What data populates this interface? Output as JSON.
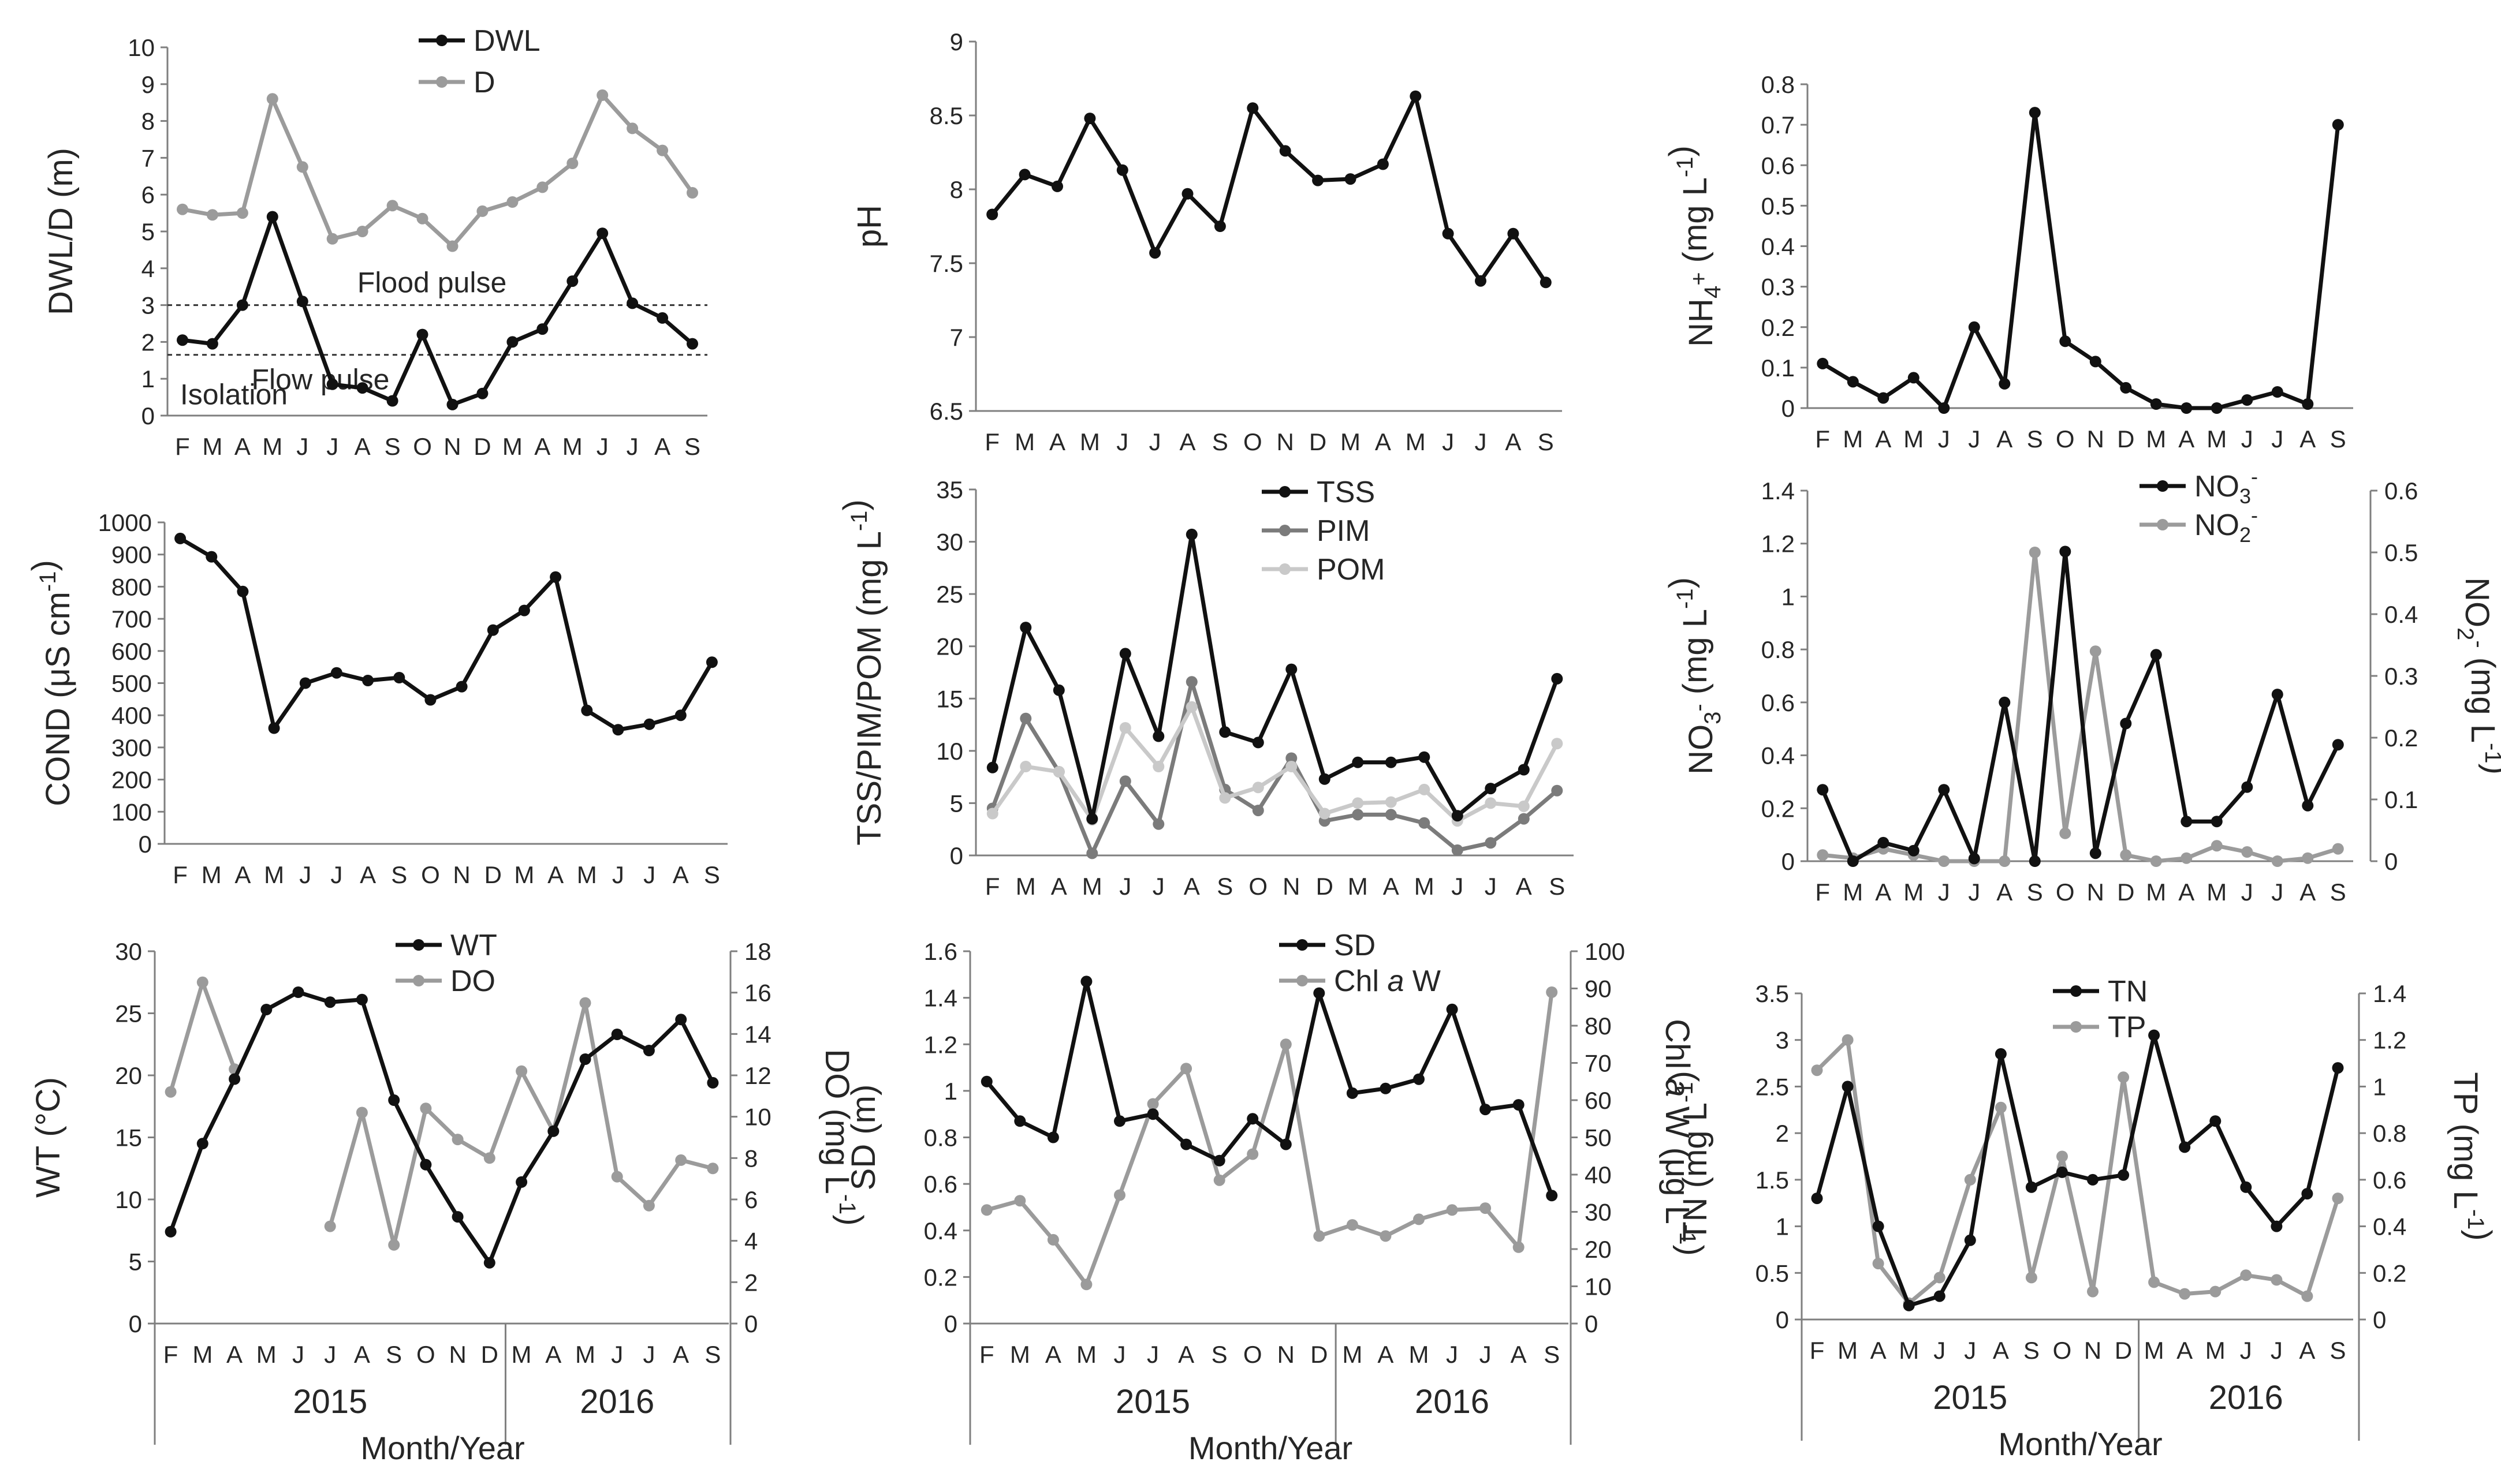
{
  "colors": {
    "black_series": "#111111",
    "gray_series": "#9b9b9b",
    "mid_gray_series": "#7b7b7b",
    "light_gray_series": "#c9c9c9",
    "axis": "#7f7f7f",
    "text": "#262626"
  },
  "chart_data": [
    {
      "id": "dwl",
      "type": "line",
      "categories": [
        "F",
        "M",
        "A",
        "M",
        "J",
        "J",
        "A",
        "S",
        "O",
        "N",
        "D",
        "M",
        "A",
        "M",
        "J",
        "J",
        "A",
        "S"
      ],
      "ylabel": "DWL/D (m)",
      "ylim": [
        0,
        10
      ],
      "yticks": [
        0,
        1,
        2,
        3,
        4,
        5,
        6,
        7,
        8,
        9,
        10
      ],
      "legend": "top-center",
      "series": [
        {
          "name": "DWL",
          "color": "#111111",
          "values": [
            2.05,
            1.95,
            3.0,
            5.4,
            3.1,
            0.85,
            0.75,
            0.4,
            2.2,
            0.3,
            0.6,
            2.0,
            2.35,
            3.65,
            4.95,
            3.05,
            2.65,
            1.95
          ]
        },
        {
          "name": "D",
          "color": "#9b9b9b",
          "values": [
            5.6,
            5.45,
            5.5,
            8.6,
            6.75,
            4.8,
            5.0,
            5.7,
            5.35,
            4.6,
            5.55,
            5.8,
            6.2,
            6.85,
            8.7,
            7.8,
            7.2,
            6.05
          ]
        }
      ],
      "reference_lines": [
        {
          "value": 3.0,
          "label": "Flood pulse"
        },
        {
          "value": 1.65,
          "label": "Flow pulse"
        }
      ],
      "annotations": [
        "Isolation"
      ]
    },
    {
      "id": "ph",
      "type": "line",
      "categories": [
        "F",
        "M",
        "A",
        "M",
        "J",
        "J",
        "A",
        "S",
        "O",
        "N",
        "D",
        "M",
        "A",
        "M",
        "J",
        "J",
        "A",
        "S"
      ],
      "ylabel": "pH",
      "ylim": [
        6.5,
        9
      ],
      "yticks": [
        6.5,
        7,
        7.5,
        8,
        8.5,
        9
      ],
      "series": [
        {
          "name": "pH",
          "color": "#111111",
          "values": [
            7.83,
            8.1,
            8.02,
            8.48,
            8.13,
            7.57,
            7.97,
            7.75,
            8.55,
            8.26,
            8.06,
            8.07,
            8.17,
            8.63,
            7.7,
            7.38,
            7.7,
            7.37
          ]
        }
      ]
    },
    {
      "id": "nh4",
      "type": "line",
      "categories": [
        "F",
        "M",
        "A",
        "M",
        "J",
        "J",
        "A",
        "S",
        "O",
        "N",
        "D",
        "M",
        "A",
        "M",
        "J",
        "J",
        "A",
        "S"
      ],
      "ylabel": "NH4+ (mg L-1)",
      "ylim": [
        0,
        0.8
      ],
      "yticks": [
        0,
        0.1,
        0.2,
        0.3,
        0.4,
        0.5,
        0.6,
        0.7,
        0.8
      ],
      "series": [
        {
          "name": "NH4+",
          "color": "#111111",
          "values": [
            0.11,
            0.065,
            0.025,
            0.075,
            0.0,
            0.2,
            0.06,
            0.73,
            0.165,
            0.115,
            0.05,
            0.01,
            0.0,
            0.0,
            0.02,
            0.04,
            0.01,
            0.7
          ]
        }
      ]
    },
    {
      "id": "cond",
      "type": "line",
      "categories": [
        "F",
        "M",
        "A",
        "M",
        "J",
        "J",
        "A",
        "S",
        "O",
        "N",
        "D",
        "M",
        "A",
        "M",
        "J",
        "J",
        "A",
        "S"
      ],
      "ylabel": "COND (μS cm-1)",
      "ylim": [
        0,
        1000
      ],
      "yticks": [
        0,
        100,
        200,
        300,
        400,
        500,
        600,
        700,
        800,
        900,
        1000
      ],
      "series": [
        {
          "name": "COND",
          "color": "#111111",
          "values": [
            950,
            893,
            785,
            360,
            500,
            532,
            508,
            517,
            448,
            489,
            665,
            726,
            830,
            415,
            355,
            372,
            400,
            565
          ]
        }
      ]
    },
    {
      "id": "tss",
      "type": "line",
      "categories": [
        "F",
        "M",
        "A",
        "M",
        "J",
        "J",
        "A",
        "S",
        "O",
        "N",
        "D",
        "M",
        "A",
        "M",
        "J",
        "J",
        "A",
        "S"
      ],
      "ylabel": "TSS/PIM/POM (mg L-1)",
      "ylim": [
        0,
        35
      ],
      "yticks": [
        0,
        5,
        10,
        15,
        20,
        25,
        30,
        35
      ],
      "legend": "top-center",
      "series": [
        {
          "name": "TSS",
          "color": "#111111",
          "values": [
            8.4,
            21.8,
            15.8,
            3.5,
            19.3,
            11.4,
            30.7,
            11.8,
            10.8,
            17.8,
            7.3,
            8.9,
            8.9,
            9.4,
            3.8,
            6.4,
            8.2,
            16.9
          ]
        },
        {
          "name": "PIM",
          "color": "#7b7b7b",
          "values": [
            4.5,
            13.1,
            8.0,
            0.2,
            7.1,
            3.0,
            16.6,
            6.3,
            4.3,
            9.3,
            3.3,
            3.9,
            3.9,
            3.1,
            0.5,
            1.2,
            3.5,
            6.2
          ]
        },
        {
          "name": "POM",
          "color": "#c9c9c9",
          "values": [
            4.0,
            8.5,
            8.0,
            3.4,
            12.2,
            8.5,
            14.2,
            5.5,
            6.5,
            8.5,
            4.0,
            5.0,
            5.1,
            6.3,
            3.3,
            5.0,
            4.7,
            10.7
          ]
        }
      ]
    },
    {
      "id": "no3",
      "type": "line",
      "categories": [
        "F",
        "M",
        "A",
        "M",
        "J",
        "J",
        "A",
        "S",
        "O",
        "N",
        "D",
        "M",
        "A",
        "M",
        "J",
        "J",
        "A",
        "S"
      ],
      "ylabel": "NO3- (mg L-1)",
      "ylabel_right": "NO2- (mg L-1)",
      "ylim": [
        0,
        1.4
      ],
      "yticks": [
        0,
        0.2,
        0.4,
        0.6,
        0.8,
        1,
        1.2,
        1.4
      ],
      "ylim_right": [
        0,
        0.6
      ],
      "yticks_right": [
        0,
        0.1,
        0.2,
        0.3,
        0.4,
        0.5,
        0.6
      ],
      "legend": "top-right",
      "series": [
        {
          "name": "NO3-",
          "color": "#111111",
          "axis": "left",
          "values": [
            0.27,
            0.0,
            0.07,
            0.04,
            0.27,
            0.01,
            0.6,
            0.0,
            1.17,
            0.03,
            0.52,
            0.78,
            0.15,
            0.15,
            0.28,
            0.63,
            0.21,
            0.44
          ]
        },
        {
          "name": "NO2-",
          "color": "#9b9b9b",
          "axis": "right",
          "values": [
            0.01,
            0.005,
            0.02,
            0.01,
            0.0,
            0.0,
            0.0,
            0.5,
            0.045,
            0.34,
            0.01,
            0.0,
            0.005,
            0.025,
            0.015,
            0.0,
            0.005,
            0.02
          ]
        }
      ]
    },
    {
      "id": "wt",
      "type": "line",
      "categories": [
        "F",
        "M",
        "A",
        "M",
        "J",
        "J",
        "A",
        "S",
        "O",
        "N",
        "D",
        "M",
        "A",
        "M",
        "J",
        "J",
        "A",
        "S"
      ],
      "xgroups": [
        {
          "label": "2015",
          "from": 0,
          "to": 10
        },
        {
          "label": "2016",
          "from": 11,
          "to": 17
        }
      ],
      "xlabel": "Month/Year",
      "ylabel": "WT (°C)",
      "ylabel_right": "DO (mg L-1)",
      "ylim": [
        0,
        30
      ],
      "yticks": [
        0,
        5,
        10,
        15,
        20,
        25,
        30
      ],
      "ylim_right": [
        0,
        18
      ],
      "yticks_right": [
        0,
        2,
        4,
        6,
        8,
        10,
        12,
        14,
        16,
        18
      ],
      "legend": "top-center",
      "series": [
        {
          "name": "WT",
          "color": "#111111",
          "axis": "left",
          "values": [
            7.4,
            14.5,
            19.7,
            25.3,
            26.7,
            25.9,
            26.1,
            18.0,
            12.8,
            8.6,
            4.9,
            11.4,
            15.5,
            21.3,
            23.3,
            22.0,
            24.5,
            19.4
          ]
        },
        {
          "name": "DO",
          "color": "#9b9b9b",
          "axis": "right",
          "values": [
            11.2,
            16.5,
            12.3,
            null,
            null,
            4.7,
            10.2,
            3.8,
            10.4,
            8.9,
            8.0,
            12.2,
            9.3,
            15.5,
            7.1,
            5.7,
            7.9,
            7.5
          ]
        }
      ]
    },
    {
      "id": "sd",
      "type": "line",
      "categories": [
        "F",
        "M",
        "A",
        "M",
        "J",
        "J",
        "A",
        "S",
        "O",
        "N",
        "D",
        "M",
        "A",
        "M",
        "J",
        "J",
        "A",
        "S"
      ],
      "xgroups": [
        {
          "label": "2015",
          "from": 0,
          "to": 10
        },
        {
          "label": "2016",
          "from": 11,
          "to": 17
        }
      ],
      "xlabel": "Month/Year",
      "ylabel": "SD (m)",
      "ylabel_right": "Chl a W (μg L-1)",
      "ylim": [
        0,
        1.6
      ],
      "yticks": [
        0,
        0.2,
        0.4,
        0.6,
        0.8,
        1,
        1.2,
        1.4,
        1.6
      ],
      "ylim_right": [
        0,
        100
      ],
      "yticks_right": [
        0,
        10,
        20,
        30,
        40,
        50,
        60,
        70,
        80,
        90,
        100
      ],
      "legend": "top-center",
      "series": [
        {
          "name": "SD",
          "color": "#111111",
          "axis": "left",
          "values": [
            1.04,
            0.87,
            0.8,
            1.47,
            0.87,
            0.9,
            0.77,
            0.7,
            0.88,
            0.77,
            1.42,
            0.99,
            1.01,
            1.05,
            1.35,
            0.92,
            0.94,
            0.55
          ]
        },
        {
          "name": "Chl a W",
          "color": "#9b9b9b",
          "axis": "right",
          "values": [
            30.5,
            33.0,
            22.5,
            10.5,
            34.5,
            59.0,
            68.5,
            38.5,
            45.5,
            75.0,
            23.5,
            26.5,
            23.5,
            28.0,
            30.5,
            31.0,
            20.5,
            89.0
          ]
        }
      ]
    },
    {
      "id": "tn",
      "type": "line",
      "categories": [
        "F",
        "M",
        "A",
        "M",
        "J",
        "J",
        "A",
        "S",
        "O",
        "N",
        "D",
        "M",
        "A",
        "M",
        "J",
        "J",
        "A",
        "S"
      ],
      "xgroups": [
        {
          "label": "2015",
          "from": 0,
          "to": 10
        },
        {
          "label": "2016",
          "from": 11,
          "to": 17
        }
      ],
      "xlabel": "Month/Year",
      "ylabel": "TN (mg L-1)",
      "ylabel_right": "TP (mg L-1)",
      "ylim": [
        0,
        3.5
      ],
      "yticks": [
        0,
        0.5,
        1,
        1.5,
        2,
        2.5,
        3,
        3.5
      ],
      "ylim_right": [
        0,
        1.4
      ],
      "yticks_right": [
        0,
        0.2,
        0.4,
        0.6,
        0.8,
        1,
        1.2,
        1.4
      ],
      "legend": "top-center",
      "series": [
        {
          "name": "TN",
          "color": "#111111",
          "axis": "left",
          "values": [
            1.3,
            2.5,
            1.0,
            0.15,
            0.25,
            0.85,
            2.85,
            1.42,
            1.58,
            1.5,
            1.55,
            3.05,
            1.85,
            2.13,
            1.42,
            1.0,
            1.35,
            2.7
          ]
        },
        {
          "name": "TP",
          "color": "#9b9b9b",
          "axis": "right",
          "values": [
            1.07,
            1.2,
            0.24,
            0.07,
            0.18,
            0.6,
            0.91,
            0.18,
            0.7,
            0.12,
            1.04,
            0.16,
            0.11,
            0.12,
            0.19,
            0.17,
            0.1,
            0.52
          ]
        }
      ]
    }
  ]
}
